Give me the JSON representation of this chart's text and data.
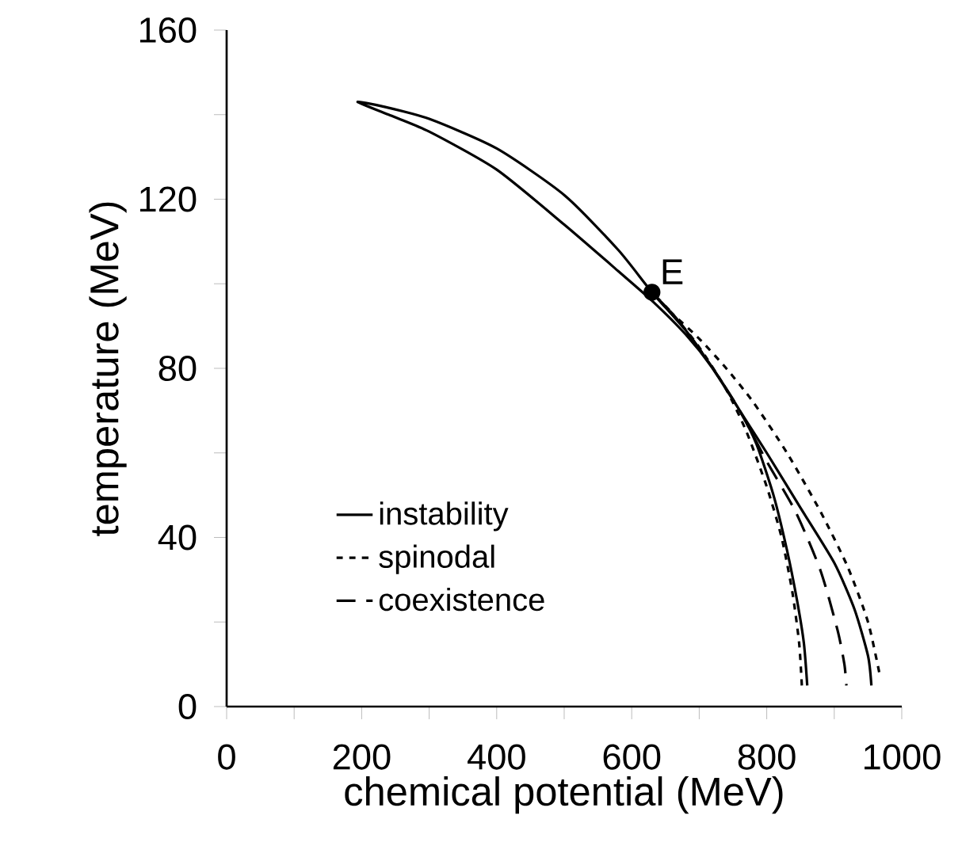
{
  "chart_data": {
    "type": "line",
    "xlabel": "chemical potential (MeV)",
    "ylabel": "temperature (MeV)",
    "xlim": [
      0,
      1000
    ],
    "ylim": [
      0,
      160
    ],
    "xticks": [
      0,
      {
        "value": 100,
        "label": null
      },
      200,
      {
        "value": 300,
        "label": null
      },
      400,
      {
        "value": 500,
        "label": null
      },
      600,
      {
        "value": 700,
        "label": null
      },
      800,
      {
        "value": 900,
        "label": null
      },
      1000
    ],
    "yticks": [
      0,
      {
        "value": 20,
        "label": null
      },
      40,
      {
        "value": 60,
        "label": null
      },
      80,
      {
        "value": 100,
        "label": null
      },
      120,
      {
        "value": 140,
        "label": null
      },
      160
    ],
    "grid": false,
    "legend": "left",
    "marker": "none",
    "annotations": [
      {
        "text": "E",
        "x": 630,
        "y": 98
      }
    ],
    "series": [
      {
        "name": "instability",
        "color": "#000000",
        "line_style": "solid",
        "x": [
          860,
          855,
          845,
          830,
          810,
          785,
          760,
          720,
          680,
          630,
          580,
          500,
          400,
          300,
          240,
          194,
          230,
          300,
          400,
          500,
          580,
          630,
          680,
          720,
          760,
          800,
          850,
          900,
          930,
          950,
          955
        ],
        "values": [
          5,
          15,
          25,
          37,
          50,
          62,
          70,
          80,
          88,
          96,
          103,
          114,
          127,
          136,
          140,
          143,
          142,
          139,
          132,
          121,
          108,
          98,
          89,
          80,
          70,
          60,
          47,
          34,
          23,
          12,
          5
        ]
      },
      {
        "name": "spinodal",
        "color": "#000000",
        "line_style": "dotted",
        "x": [
          852,
          848,
          838,
          822,
          800,
          770,
          740,
          700,
          660,
          630,
          null,
          630,
          660,
          700,
          740,
          780,
          830,
          880,
          920,
          950,
          968
        ],
        "values": [
          5,
          15,
          27,
          40,
          52,
          65,
          75,
          85,
          93,
          98,
          null,
          98,
          93,
          87,
          80,
          72,
          60,
          46,
          33,
          20,
          7
        ]
      },
      {
        "name": "coexistence",
        "color": "#000000",
        "line_style": "dashed",
        "x": [
          630,
          680,
          720,
          760,
          800,
          843,
          880,
          905,
          915,
          918
        ],
        "values": [
          98,
          89,
          80,
          70,
          58,
          46,
          32,
          18,
          10,
          5
        ]
      },
      {
        "type": "scatter",
        "color": "#000000",
        "marker": "circle",
        "x": [
          630
        ],
        "values": [
          98
        ]
      }
    ]
  }
}
